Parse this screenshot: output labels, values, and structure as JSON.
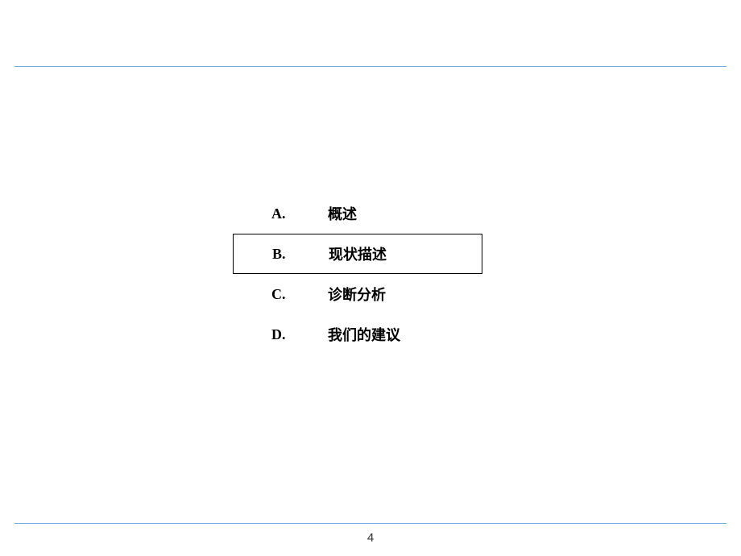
{
  "page": {
    "number": "4",
    "rule_color": "#6baee5"
  },
  "outline": {
    "items": [
      {
        "letter": "A.",
        "label": "概述",
        "selected": false
      },
      {
        "letter": "B.",
        "label": "现状描述",
        "selected": true
      },
      {
        "letter": "C.",
        "label": "诊断分析",
        "selected": false
      },
      {
        "letter": "D.",
        "label": "我们的建议",
        "selected": false
      }
    ]
  },
  "typography": {
    "letter_fontsize": 18,
    "label_fontsize": 18,
    "pagenum_fontsize": 15
  }
}
